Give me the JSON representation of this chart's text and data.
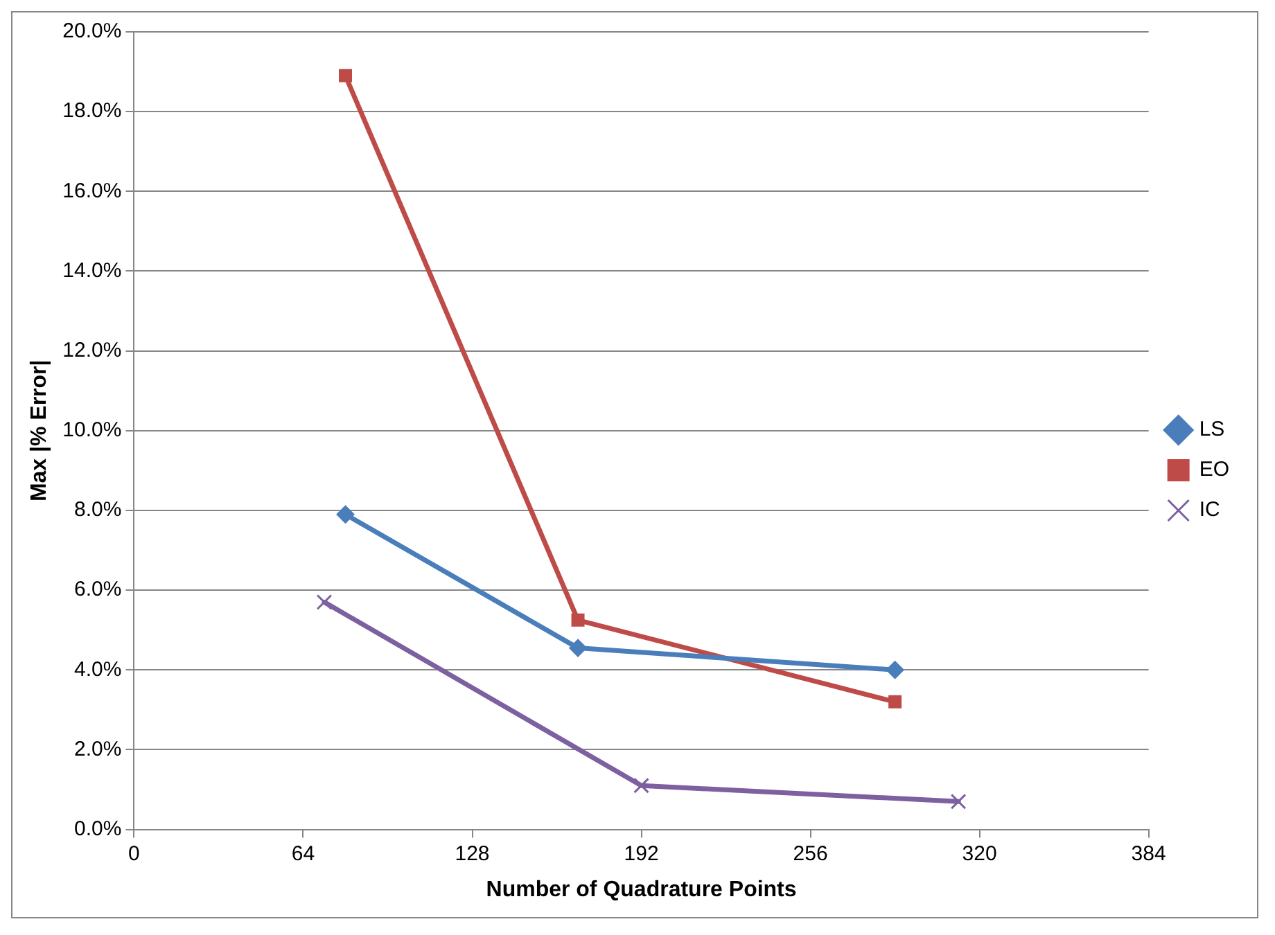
{
  "chart_data": {
    "type": "line",
    "xlabel": "Number of Quadrature Points",
    "ylabel": "Max |% Error|",
    "xlim": [
      0,
      384
    ],
    "xticks": [
      0,
      64,
      128,
      192,
      256,
      320,
      384
    ],
    "ylim": [
      0,
      20
    ],
    "yticks": [
      {
        "value": 0,
        "label": "0.0%"
      },
      {
        "value": 2,
        "label": "2.0%"
      },
      {
        "value": 4,
        "label": "4.0%"
      },
      {
        "value": 6,
        "label": "6.0%"
      },
      {
        "value": 8,
        "label": "8.0%"
      },
      {
        "value": 10,
        "label": "10.0%"
      },
      {
        "value": 12,
        "label": "12.0%"
      },
      {
        "value": 14,
        "label": "14.0%"
      },
      {
        "value": 16,
        "label": "16.0%"
      },
      {
        "value": 18,
        "label": "18.0%"
      },
      {
        "value": 20,
        "label": "20.0%"
      }
    ],
    "grid": "y",
    "legend": "right",
    "line_style": "solid",
    "series": [
      {
        "name": "LS",
        "color": "#4a7ebb",
        "marker": "diamond",
        "x": [
          80,
          168,
          288
        ],
        "values": [
          7.9,
          4.55,
          4.0
        ]
      },
      {
        "name": "EO",
        "color": "#be4b48",
        "marker": "square",
        "x": [
          80,
          168,
          288
        ],
        "values": [
          18.9,
          5.25,
          3.2
        ]
      },
      {
        "name": "IC",
        "color": "#7d60a0",
        "marker": "cross",
        "x": [
          72,
          192,
          312
        ],
        "values": [
          5.7,
          1.1,
          0.7
        ]
      }
    ]
  }
}
